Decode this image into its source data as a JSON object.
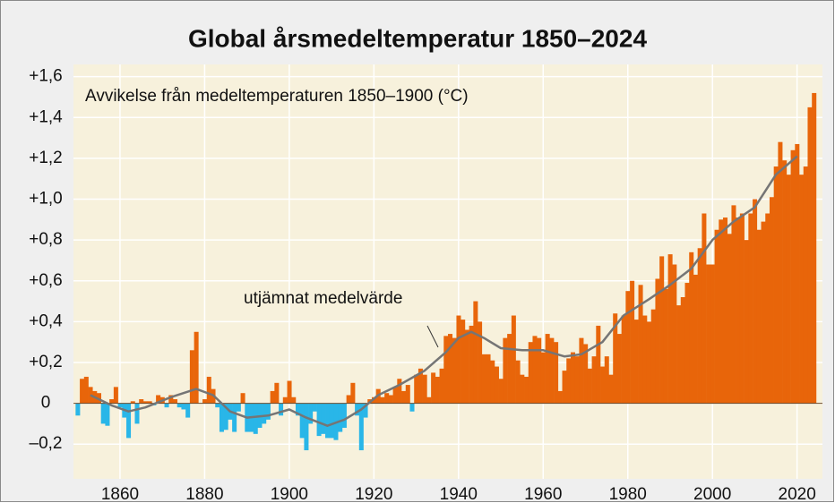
{
  "chart_data": {
    "type": "bar",
    "title": "Global årsmedeltemperatur 1850–2024",
    "subtitle": "Avvikelse från medeltemperaturen 1850–1900 (°C)",
    "color_positive": "#e8650a",
    "color_negative": "#29b6e8",
    "grid": true,
    "xlim": [
      1849,
      2026
    ],
    "ylim": [
      -0.37,
      1.66
    ],
    "xticks": [
      1860,
      1880,
      1900,
      1920,
      1940,
      1960,
      1980,
      2000,
      2020
    ],
    "yticks": [
      {
        "value": 1.6,
        "label": "+1,6"
      },
      {
        "value": 1.4,
        "label": "+1,4"
      },
      {
        "value": 1.2,
        "label": "+1,2"
      },
      {
        "value": 1.0,
        "label": "+1,0"
      },
      {
        "value": 0.8,
        "label": "+0,8"
      },
      {
        "value": 0.6,
        "label": "+0,6"
      },
      {
        "value": 0.4,
        "label": "+0,4"
      },
      {
        "value": 0.2,
        "label": "+0,2"
      },
      0,
      {
        "value": -0.2,
        "label": "–0,2"
      }
    ],
    "x": [
      1850,
      1851,
      1852,
      1853,
      1854,
      1855,
      1856,
      1857,
      1858,
      1859,
      1860,
      1861,
      1862,
      1863,
      1864,
      1865,
      1866,
      1867,
      1868,
      1869,
      1870,
      1871,
      1872,
      1873,
      1874,
      1875,
      1876,
      1877,
      1878,
      1879,
      1880,
      1881,
      1882,
      1883,
      1884,
      1885,
      1886,
      1887,
      1888,
      1889,
      1890,
      1891,
      1892,
      1893,
      1894,
      1895,
      1896,
      1897,
      1898,
      1899,
      1900,
      1901,
      1902,
      1903,
      1904,
      1905,
      1906,
      1907,
      1908,
      1909,
      1910,
      1911,
      1912,
      1913,
      1914,
      1915,
      1916,
      1917,
      1918,
      1919,
      1920,
      1921,
      1922,
      1923,
      1924,
      1925,
      1926,
      1927,
      1928,
      1929,
      1930,
      1931,
      1932,
      1933,
      1934,
      1935,
      1936,
      1937,
      1938,
      1939,
      1940,
      1941,
      1942,
      1943,
      1944,
      1945,
      1946,
      1947,
      1948,
      1949,
      1950,
      1951,
      1952,
      1953,
      1954,
      1955,
      1956,
      1957,
      1958,
      1959,
      1960,
      1961,
      1962,
      1963,
      1964,
      1965,
      1966,
      1967,
      1968,
      1969,
      1970,
      1971,
      1972,
      1973,
      1974,
      1975,
      1976,
      1977,
      1978,
      1979,
      1980,
      1981,
      1982,
      1983,
      1984,
      1985,
      1986,
      1987,
      1988,
      1989,
      1990,
      1991,
      1992,
      1993,
      1994,
      1995,
      1996,
      1997,
      1998,
      1999,
      2000,
      2001,
      2002,
      2003,
      2004,
      2005,
      2006,
      2007,
      2008,
      2009,
      2010,
      2011,
      2012,
      2013,
      2014,
      2015,
      2016,
      2017,
      2018,
      2019,
      2020,
      2021,
      2022,
      2023,
      2024
    ],
    "values": [
      -0.06,
      0.12,
      0.13,
      0.08,
      0.06,
      0.05,
      -0.1,
      -0.11,
      0.02,
      0.08,
      -0.02,
      -0.07,
      -0.17,
      0.01,
      -0.1,
      0.02,
      0.01,
      0.01,
      -0.01,
      0.04,
      0.03,
      -0.02,
      0.04,
      0.02,
      -0.02,
      -0.03,
      -0.07,
      0.26,
      0.35,
      0.0,
      0.02,
      0.13,
      0.07,
      -0.02,
      -0.14,
      -0.13,
      -0.08,
      -0.14,
      -0.04,
      0.05,
      -0.14,
      -0.14,
      -0.15,
      -0.12,
      -0.1,
      -0.08,
      0.06,
      0.1,
      -0.06,
      0.03,
      0.11,
      0.03,
      -0.06,
      -0.17,
      -0.23,
      -0.1,
      -0.04,
      -0.16,
      -0.15,
      -0.17,
      -0.17,
      -0.18,
      -0.14,
      -0.12,
      0.04,
      0.1,
      -0.06,
      -0.23,
      -0.07,
      0.02,
      0.03,
      0.07,
      0.03,
      0.05,
      0.04,
      0.08,
      0.12,
      0.06,
      0.09,
      -0.04,
      0.14,
      0.17,
      0.14,
      0.03,
      0.15,
      0.13,
      0.17,
      0.33,
      0.34,
      0.32,
      0.43,
      0.41,
      0.36,
      0.38,
      0.5,
      0.4,
      0.24,
      0.24,
      0.21,
      0.18,
      0.12,
      0.32,
      0.34,
      0.43,
      0.21,
      0.14,
      0.13,
      0.3,
      0.33,
      0.32,
      0.25,
      0.34,
      0.32,
      0.3,
      0.06,
      0.16,
      0.22,
      0.25,
      0.23,
      0.32,
      0.29,
      0.17,
      0.23,
      0.38,
      0.18,
      0.23,
      0.14,
      0.44,
      0.34,
      0.43,
      0.55,
      0.6,
      0.41,
      0.58,
      0.43,
      0.4,
      0.46,
      0.61,
      0.72,
      0.56,
      0.73,
      0.68,
      0.48,
      0.52,
      0.59,
      0.74,
      0.63,
      0.76,
      0.93,
      0.68,
      0.68,
      0.85,
      0.9,
      0.91,
      0.83,
      0.97,
      0.91,
      0.93,
      0.8,
      0.93,
      1.0,
      0.85,
      0.89,
      0.93,
      1.01,
      1.16,
      1.28,
      1.19,
      1.12,
      1.24,
      1.27,
      1.12,
      1.16,
      1.45,
      1.52
    ],
    "smoothed": {
      "name": "utjämnat medelvärde",
      "color": "#757575",
      "x": [
        1853,
        1858,
        1862,
        1866,
        1872,
        1878,
        1882,
        1886,
        1890,
        1895,
        1900,
        1904,
        1909,
        1913,
        1917,
        1921,
        1926,
        1932,
        1937,
        1940,
        1943,
        1946,
        1950,
        1955,
        1960,
        1965,
        1969,
        1974,
        1979,
        1985,
        1990,
        1995,
        2000,
        2005,
        2010,
        2015,
        2020
      ],
      "values": [
        0.04,
        -0.01,
        -0.04,
        -0.02,
        0.03,
        0.07,
        0.04,
        -0.04,
        -0.07,
        -0.06,
        -0.03,
        -0.07,
        -0.11,
        -0.08,
        -0.03,
        0.04,
        0.09,
        0.16,
        0.25,
        0.32,
        0.35,
        0.32,
        0.27,
        0.26,
        0.26,
        0.23,
        0.24,
        0.3,
        0.43,
        0.51,
        0.58,
        0.66,
        0.8,
        0.89,
        0.96,
        1.12,
        1.21
      ]
    }
  }
}
